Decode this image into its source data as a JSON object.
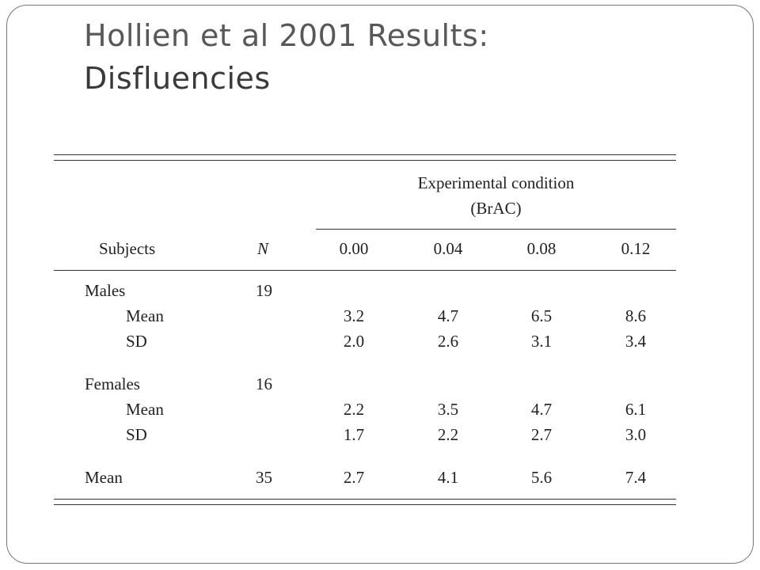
{
  "title": {
    "line1": "Hollien et al 2001 Results:",
    "line2": "Disfluencies"
  },
  "table": {
    "header": {
      "group_label_line1": "Experimental condition",
      "group_label_line2": "(BrAC)",
      "subjects": "Subjects",
      "n": "N",
      "conditions": [
        "0.00",
        "0.04",
        "0.08",
        "0.12"
      ]
    },
    "groups": [
      {
        "name": "Males",
        "n": "19",
        "rows": [
          {
            "label": "Mean",
            "values": [
              "3.2",
              "4.7",
              "6.5",
              "8.6"
            ]
          },
          {
            "label": "SD",
            "values": [
              "2.0",
              "2.6",
              "3.1",
              "3.4"
            ]
          }
        ]
      },
      {
        "name": "Females",
        "n": "16",
        "rows": [
          {
            "label": "Mean",
            "values": [
              "2.2",
              "3.5",
              "4.7",
              "6.1"
            ]
          },
          {
            "label": "SD",
            "values": [
              "1.7",
              "2.2",
              "2.7",
              "3.0"
            ]
          }
        ]
      }
    ],
    "total": {
      "label": "Mean",
      "n": "35",
      "values": [
        "2.7",
        "4.1",
        "5.6",
        "7.4"
      ]
    }
  }
}
